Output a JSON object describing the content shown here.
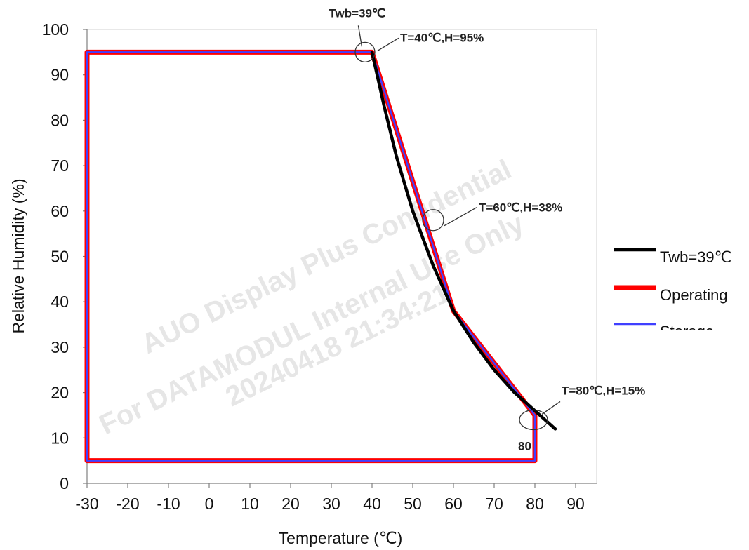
{
  "chart_data": {
    "type": "line",
    "xlabel": "Temperature (℃)",
    "ylabel": "Relative Humidity (%)",
    "xlim": [
      -30,
      90
    ],
    "ylim": [
      0,
      100
    ],
    "xticks": [
      -30,
      -20,
      -10,
      0,
      10,
      20,
      30,
      40,
      50,
      60,
      70,
      80,
      90
    ],
    "yticks": [
      0,
      10,
      20,
      30,
      40,
      50,
      60,
      70,
      80,
      90,
      100
    ],
    "grid": false,
    "legend_position": "right",
    "series": [
      {
        "name": "Twb=39℃",
        "color": "#000000",
        "x": [
          40,
          43,
          46,
          50,
          55,
          60,
          65,
          70,
          75,
          80,
          85
        ],
        "y": [
          95,
          83,
          72,
          60,
          48,
          38,
          31,
          25,
          20,
          16,
          12
        ]
      },
      {
        "name": "Operating",
        "color": "#ff0000",
        "x": [
          -30,
          -30,
          40,
          60,
          80,
          80,
          -30
        ],
        "y": [
          5,
          95,
          95,
          38,
          15,
          5,
          5
        ]
      },
      {
        "name": "Storage",
        "color": "#4040ff",
        "x": [
          -30,
          -30,
          40,
          60,
          80,
          80,
          -30
        ],
        "y": [
          5,
          95,
          95,
          38,
          15,
          5,
          5
        ]
      }
    ],
    "annotations": [
      {
        "text": "Twb=39℃",
        "x": 38,
        "y": 95
      },
      {
        "text": "T=40℃,H=95%",
        "x": 40,
        "y": 95
      },
      {
        "text": "T=60℃,H=38%",
        "x": 55,
        "y": 58
      },
      {
        "text": "T=80℃,H=15%",
        "x": 80,
        "y": 14
      },
      {
        "text": "80",
        "x": 80,
        "y": 12
      }
    ],
    "watermark": [
      "AUO Display Plus Confidential",
      "For DATAMODUL Internal Use Only",
      "20240418 21:34:21"
    ]
  }
}
